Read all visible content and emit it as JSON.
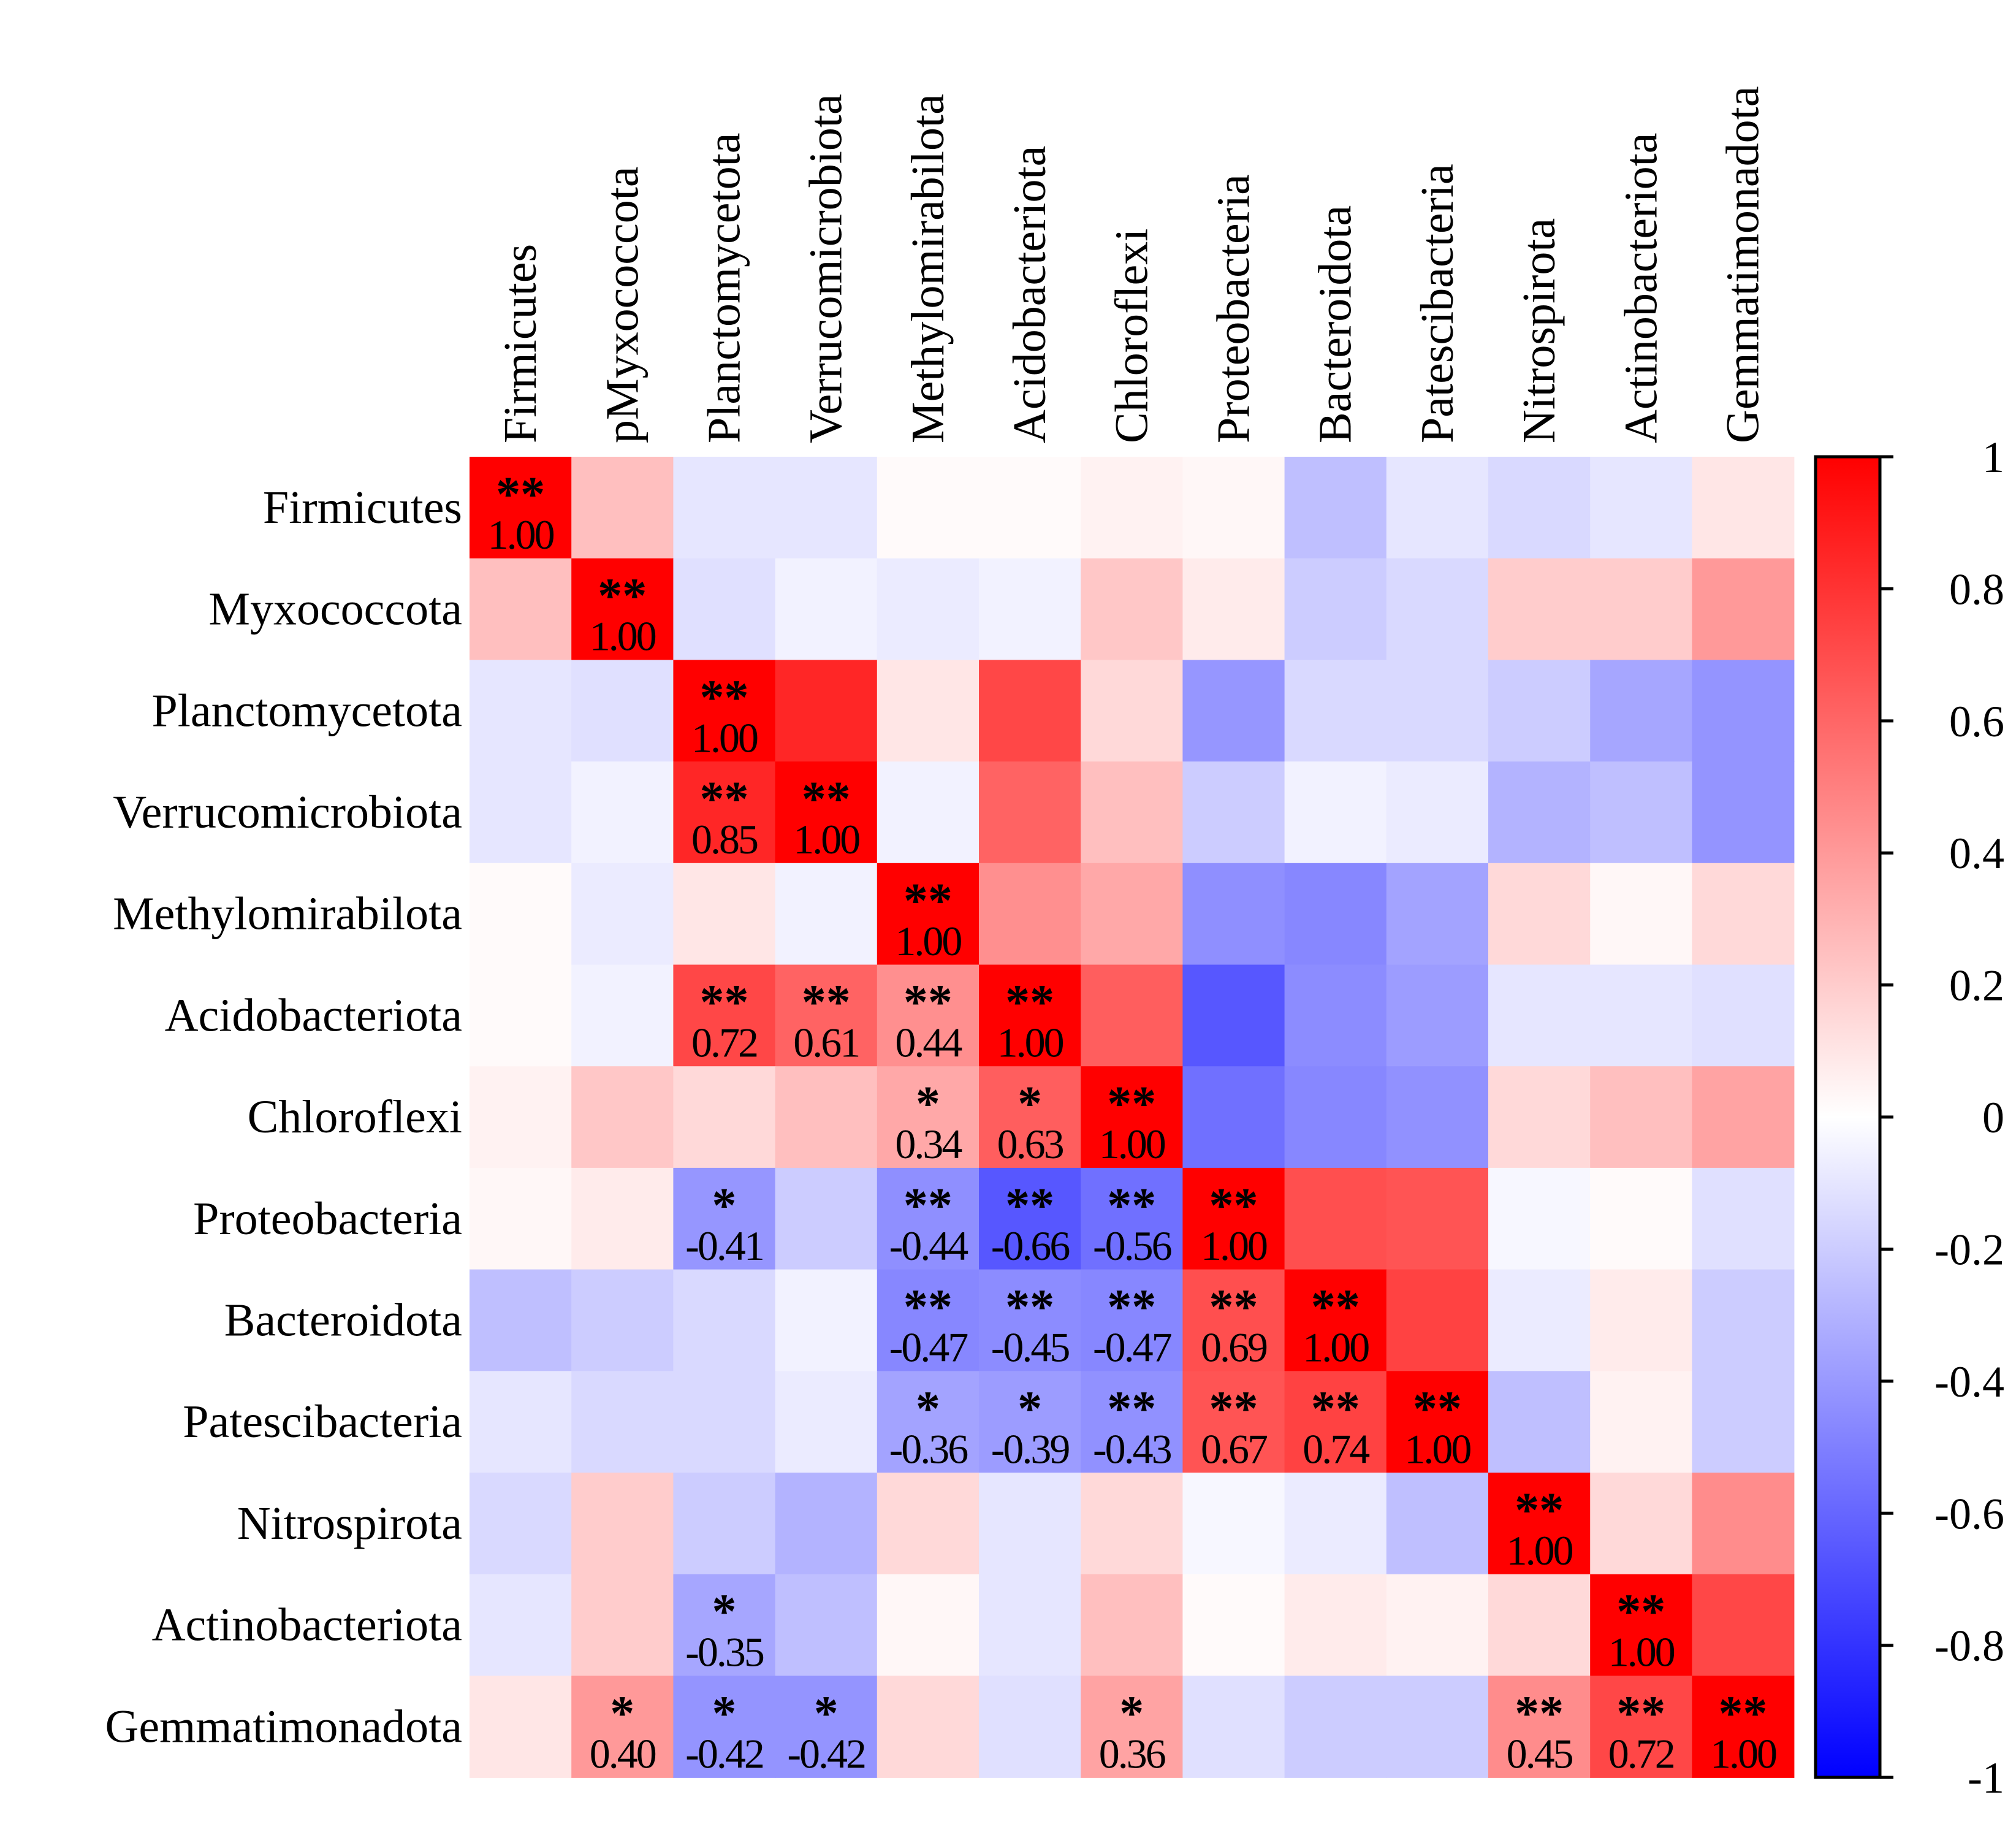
{
  "chart_data": {
    "type": "heatmap",
    "title": "",
    "row_labels": [
      "Firmicutes",
      "Myxococcota",
      "Planctomycetota",
      "Verrucomicrobiota",
      "Methylomirabilota",
      "Acidobacteriota",
      "Chloroflexi",
      "Proteobacteria",
      "Bacteroidota",
      "Patescibacteria",
      "Nitrospirota",
      "Actinobacteriota",
      "Gemmatimonadota"
    ],
    "col_labels": [
      "Firmicutes",
      "pMyxococcota",
      "Planctomycetota",
      "Verrucomicrobiota",
      "Methylomirabilota",
      "Acidobacteriota",
      "Chloroflexi",
      "Proteobacteria",
      "Bacteroidota",
      "Patescibacteria",
      "Nitrospirota",
      "Actinobacteriota",
      "Gemmatimonadota"
    ],
    "values": [
      [
        1.0,
        0.25,
        -0.1,
        -0.1,
        0.02,
        0.02,
        0.05,
        0.03,
        -0.25,
        -0.1,
        -0.15,
        -0.1,
        0.1
      ],
      [
        0.25,
        1.0,
        -0.12,
        -0.05,
        -0.08,
        -0.05,
        0.22,
        0.08,
        -0.2,
        -0.15,
        0.2,
        0.2,
        0.4
      ],
      [
        -0.1,
        -0.12,
        1.0,
        0.85,
        0.1,
        0.72,
        0.15,
        -0.41,
        -0.15,
        -0.15,
        -0.2,
        -0.35,
        -0.42
      ],
      [
        -0.1,
        -0.05,
        0.85,
        1.0,
        -0.05,
        0.61,
        0.25,
        -0.2,
        -0.05,
        -0.08,
        -0.3,
        -0.25,
        -0.42
      ],
      [
        0.02,
        -0.08,
        0.1,
        -0.05,
        1.0,
        0.44,
        0.34,
        -0.44,
        -0.47,
        -0.36,
        0.15,
        0.03,
        0.15
      ],
      [
        0.02,
        -0.05,
        0.72,
        0.61,
        0.44,
        1.0,
        0.63,
        -0.66,
        -0.45,
        -0.39,
        -0.1,
        -0.1,
        -0.12
      ],
      [
        0.05,
        0.22,
        0.15,
        0.25,
        0.34,
        0.63,
        1.0,
        -0.56,
        -0.47,
        -0.43,
        0.15,
        0.25,
        0.36
      ],
      [
        0.03,
        0.08,
        -0.41,
        -0.2,
        -0.44,
        -0.66,
        -0.56,
        1.0,
        0.69,
        0.67,
        -0.03,
        0.02,
        -0.12
      ],
      [
        -0.25,
        -0.2,
        -0.15,
        -0.05,
        -0.47,
        -0.45,
        -0.47,
        0.69,
        1.0,
        0.74,
        -0.08,
        0.08,
        -0.2
      ],
      [
        -0.1,
        -0.15,
        -0.15,
        -0.08,
        -0.36,
        -0.39,
        -0.43,
        0.67,
        0.74,
        1.0,
        -0.25,
        0.05,
        -0.2
      ],
      [
        -0.15,
        0.2,
        -0.2,
        -0.3,
        0.15,
        -0.1,
        0.15,
        -0.03,
        -0.08,
        -0.25,
        1.0,
        0.15,
        0.45
      ],
      [
        -0.1,
        0.2,
        -0.35,
        -0.25,
        0.03,
        -0.1,
        0.25,
        0.02,
        0.08,
        0.05,
        0.15,
        1.0,
        0.72
      ],
      [
        0.1,
        0.4,
        -0.42,
        -0.42,
        0.15,
        -0.12,
        0.36,
        -0.12,
        -0.2,
        -0.2,
        0.45,
        0.72,
        1.0
      ]
    ],
    "annotations": [
      {
        "row": 0,
        "col": 0,
        "sig": "**",
        "label": "1.00"
      },
      {
        "row": 1,
        "col": 1,
        "sig": "**",
        "label": "1.00"
      },
      {
        "row": 2,
        "col": 2,
        "sig": "**",
        "label": "1.00"
      },
      {
        "row": 3,
        "col": 2,
        "sig": "**",
        "label": "0.85"
      },
      {
        "row": 3,
        "col": 3,
        "sig": "**",
        "label": "1.00"
      },
      {
        "row": 4,
        "col": 4,
        "sig": "**",
        "label": "1.00"
      },
      {
        "row": 5,
        "col": 2,
        "sig": "**",
        "label": "0.72"
      },
      {
        "row": 5,
        "col": 3,
        "sig": "**",
        "label": "0.61"
      },
      {
        "row": 5,
        "col": 4,
        "sig": "**",
        "label": "0.44"
      },
      {
        "row": 5,
        "col": 5,
        "sig": "**",
        "label": "1.00"
      },
      {
        "row": 6,
        "col": 4,
        "sig": "*",
        "label": "0.34"
      },
      {
        "row": 6,
        "col": 5,
        "sig": "*",
        "label": "0.63"
      },
      {
        "row": 6,
        "col": 6,
        "sig": "**",
        "label": "1.00"
      },
      {
        "row": 7,
        "col": 2,
        "sig": "*",
        "label": "-0.41"
      },
      {
        "row": 7,
        "col": 4,
        "sig": "**",
        "label": "-0.44"
      },
      {
        "row": 7,
        "col": 5,
        "sig": "**",
        "label": "-0.66"
      },
      {
        "row": 7,
        "col": 6,
        "sig": "**",
        "label": "-0.56"
      },
      {
        "row": 7,
        "col": 7,
        "sig": "**",
        "label": "1.00"
      },
      {
        "row": 8,
        "col": 4,
        "sig": "**",
        "label": "-0.47"
      },
      {
        "row": 8,
        "col": 5,
        "sig": "**",
        "label": "-0.45"
      },
      {
        "row": 8,
        "col": 6,
        "sig": "**",
        "label": "-0.47"
      },
      {
        "row": 8,
        "col": 7,
        "sig": "**",
        "label": "0.69"
      },
      {
        "row": 8,
        "col": 8,
        "sig": "**",
        "label": "1.00"
      },
      {
        "row": 9,
        "col": 4,
        "sig": "*",
        "label": "-0.36"
      },
      {
        "row": 9,
        "col": 5,
        "sig": "*",
        "label": "-0.39"
      },
      {
        "row": 9,
        "col": 6,
        "sig": "**",
        "label": "-0.43"
      },
      {
        "row": 9,
        "col": 7,
        "sig": "**",
        "label": "0.67"
      },
      {
        "row": 9,
        "col": 8,
        "sig": "**",
        "label": "0.74"
      },
      {
        "row": 9,
        "col": 9,
        "sig": "**",
        "label": "1.00"
      },
      {
        "row": 10,
        "col": 10,
        "sig": "**",
        "label": "1.00"
      },
      {
        "row": 11,
        "col": 2,
        "sig": "*",
        "label": "-0.35"
      },
      {
        "row": 11,
        "col": 11,
        "sig": "**",
        "label": "1.00"
      },
      {
        "row": 12,
        "col": 1,
        "sig": "*",
        "label": "0.40"
      },
      {
        "row": 12,
        "col": 2,
        "sig": "*",
        "label": "-0.42"
      },
      {
        "row": 12,
        "col": 3,
        "sig": "*",
        "label": "-0.42"
      },
      {
        "row": 12,
        "col": 6,
        "sig": "*",
        "label": "0.36"
      },
      {
        "row": 12,
        "col": 10,
        "sig": "**",
        "label": "0.45"
      },
      {
        "row": 12,
        "col": 11,
        "sig": "**",
        "label": "0.72"
      },
      {
        "row": 12,
        "col": 12,
        "sig": "**",
        "label": "1.00"
      }
    ],
    "colorbar": {
      "range": [
        -1,
        1
      ],
      "ticks": [
        1,
        0.8,
        0.6,
        0.4,
        0.2,
        0,
        -0.2,
        -0.4,
        -0.6,
        -0.8,
        -1
      ],
      "tick_labels": [
        "1",
        "0.8",
        "0.6",
        "0.4",
        "0.2",
        "0",
        "-0.2",
        "-0.4",
        "-0.6",
        "-0.8",
        "-1"
      ],
      "colors": {
        "low": "#0000ff",
        "mid": "#ffffff",
        "high": "#ff0000"
      }
    }
  }
}
